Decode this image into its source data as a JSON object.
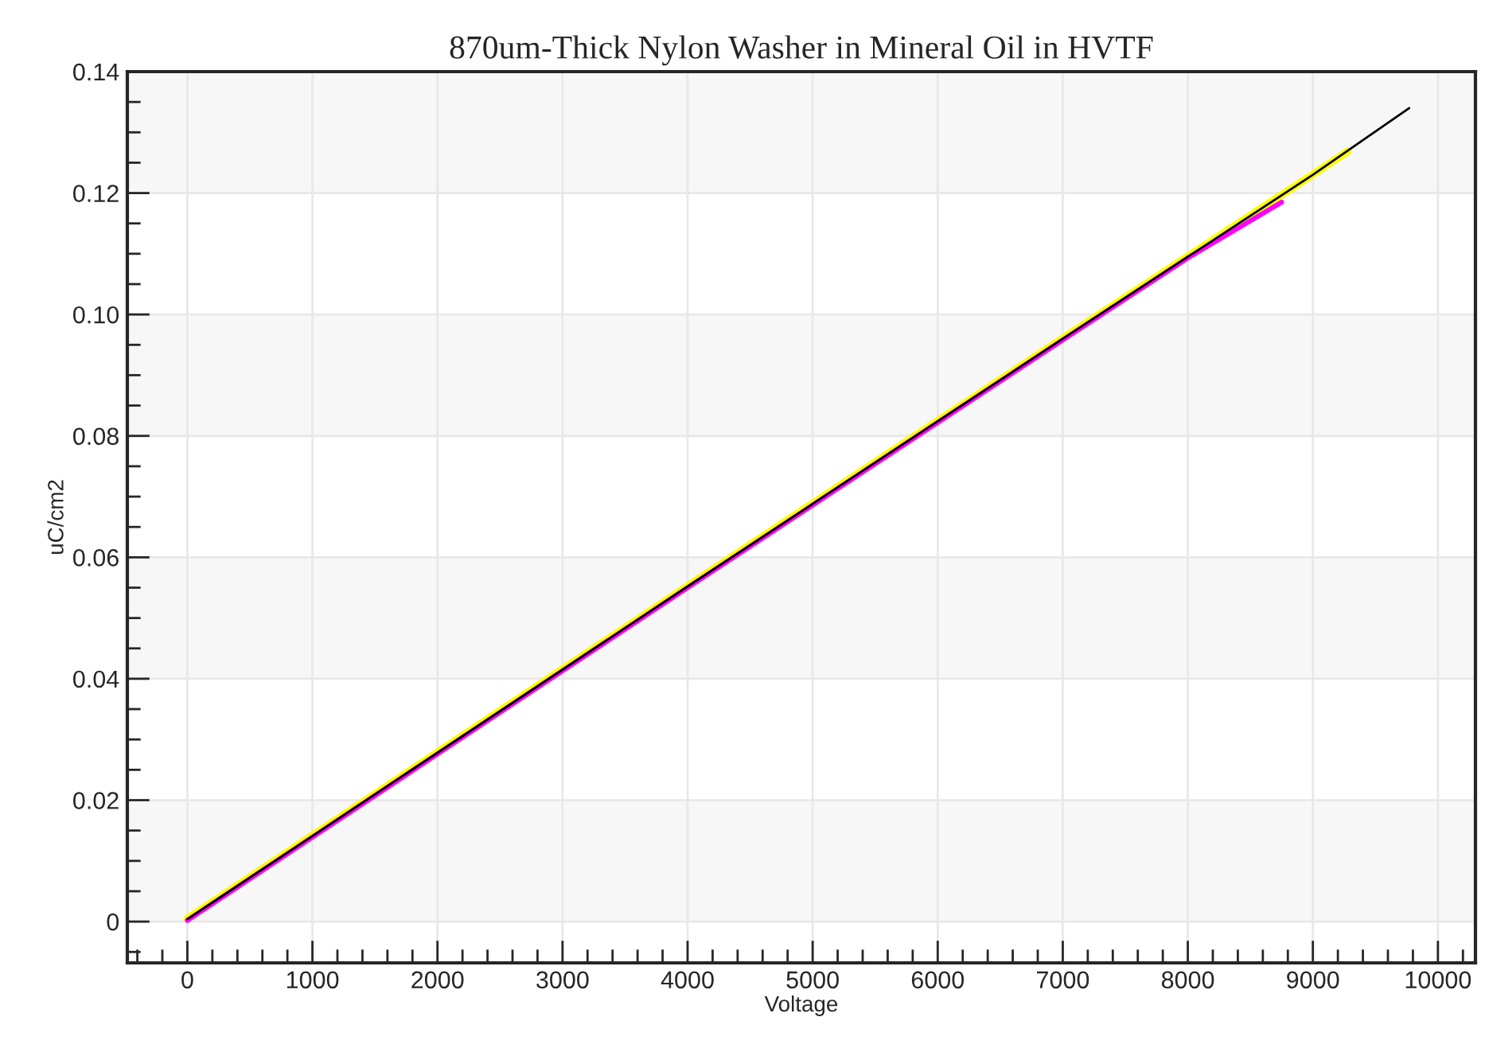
{
  "chart_data": {
    "type": "line",
    "title": "870um-Thick Nylon Washer in Mineral Oil in HVTF",
    "xlabel": "Voltage",
    "ylabel": "uC/cm2",
    "series": [
      {
        "color": "#ffff00",
        "x": [
          0,
          1000,
          2000,
          3000,
          4000,
          5000,
          6000,
          7000,
          8000,
          9000,
          9280
        ],
        "values": [
          0.0005,
          0.0142,
          0.0279,
          0.0416,
          0.0553,
          0.0689,
          0.0825,
          0.0961,
          0.1096,
          0.1231,
          0.1269
        ]
      },
      {
        "color": "#ff00ff",
        "x": [
          0,
          1000,
          2000,
          3000,
          4000,
          5000,
          6000,
          7000,
          8000,
          8750
        ],
        "values": [
          0.0002,
          0.0139,
          0.0276,
          0.0413,
          0.055,
          0.0686,
          0.0822,
          0.0958,
          0.1093,
          0.1185
        ]
      },
      {
        "color": "#000000",
        "x": [
          0,
          1000,
          2000,
          3000,
          4000,
          5000,
          6000,
          7000,
          8000,
          9000,
          9770
        ],
        "values": [
          0.0004,
          0.0141,
          0.0278,
          0.0415,
          0.0552,
          0.0688,
          0.0824,
          0.096,
          0.1095,
          0.123,
          0.134
        ]
      }
    ],
    "xlim": [
      -480,
      10300
    ],
    "xticks": [
      0,
      1000,
      2000,
      3000,
      4000,
      5000,
      6000,
      7000,
      8000,
      9000,
      10000
    ],
    "ylim": [
      -0.0068,
      0.14
    ],
    "yticks": [
      0,
      {
        "value": 0.02,
        "label": "0.02"
      },
      {
        "value": 0.04,
        "label": "0.04"
      },
      {
        "value": 0.06,
        "label": "0.06"
      },
      {
        "value": 0.08,
        "label": "0.08"
      },
      {
        "value": 0.1,
        "label": "0.10"
      },
      {
        "value": 0.12,
        "label": "0.12"
      },
      {
        "value": 0.14,
        "label": "0.14"
      }
    ],
    "bands": [
      {
        "axis": "y",
        "from": 0,
        "to": 0.02,
        "color": "#f7f7f7"
      },
      {
        "axis": "y",
        "from": 0.04,
        "to": 0.06,
        "color": "#f7f7f7"
      },
      {
        "axis": "y",
        "from": 0.08,
        "to": 0.1,
        "color": "#f7f7f7"
      },
      {
        "axis": "y",
        "from": 0.12,
        "to": 0.14,
        "color": "#f7f7f7"
      }
    ],
    "grid": true,
    "marker": "none",
    "line_style": "solid"
  }
}
